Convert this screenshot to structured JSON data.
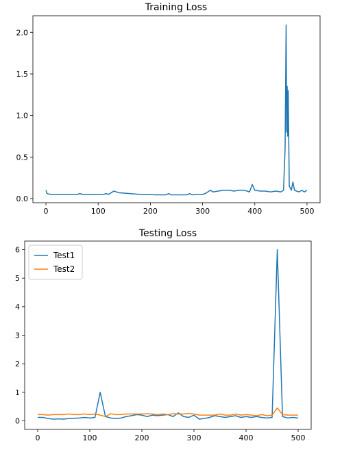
{
  "chart_data": [
    {
      "type": "line",
      "title": "Training Loss",
      "xlabel": "",
      "ylabel": "",
      "xlim": [
        -25,
        525
      ],
      "ylim": [
        -0.05,
        2.2
      ],
      "xticks": [
        0,
        100,
        200,
        300,
        400,
        500
      ],
      "yticks": [
        0.0,
        0.5,
        1.0,
        1.5,
        2.0
      ],
      "xtick_labels": [
        "0",
        "100",
        "200",
        "300",
        "400",
        "500"
      ],
      "ytick_labels": [
        "0.0",
        "0.5",
        "1.0",
        "1.5",
        "2.0"
      ],
      "grid": false,
      "legend": null,
      "series": [
        {
          "color": "#1f77b4",
          "x": [
            0,
            2,
            5,
            10,
            20,
            30,
            40,
            50,
            60,
            65,
            70,
            80,
            90,
            100,
            110,
            115,
            120,
            125,
            130,
            135,
            140,
            150,
            160,
            170,
            180,
            190,
            200,
            210,
            220,
            230,
            235,
            240,
            250,
            260,
            270,
            275,
            280,
            290,
            300,
            305,
            310,
            315,
            320,
            330,
            340,
            350,
            360,
            370,
            380,
            390,
            395,
            400,
            410,
            420,
            430,
            440,
            450,
            455,
            458,
            460,
            461,
            462,
            463,
            464,
            466,
            470,
            473,
            476,
            480,
            485,
            490,
            495,
            500
          ],
          "y": [
            0.1,
            0.06,
            0.055,
            0.05,
            0.05,
            0.05,
            0.048,
            0.05,
            0.05,
            0.06,
            0.05,
            0.05,
            0.048,
            0.05,
            0.05,
            0.06,
            0.05,
            0.07,
            0.09,
            0.08,
            0.07,
            0.065,
            0.06,
            0.055,
            0.05,
            0.05,
            0.048,
            0.045,
            0.045,
            0.045,
            0.06,
            0.045,
            0.045,
            0.045,
            0.045,
            0.06,
            0.045,
            0.05,
            0.05,
            0.06,
            0.08,
            0.1,
            0.08,
            0.09,
            0.1,
            0.1,
            0.09,
            0.1,
            0.1,
            0.08,
            0.17,
            0.1,
            0.09,
            0.09,
            0.08,
            0.09,
            0.08,
            0.1,
            0.6,
            2.09,
            0.8,
            1.35,
            0.75,
            1.3,
            0.15,
            0.1,
            0.2,
            0.1,
            0.09,
            0.08,
            0.1,
            0.08,
            0.1
          ]
        }
      ]
    },
    {
      "type": "line",
      "title": "Testing Loss",
      "xlabel": "",
      "ylabel": "",
      "xlim": [
        -25,
        525
      ],
      "ylim": [
        -0.3,
        6.3
      ],
      "xticks": [
        0,
        100,
        200,
        300,
        400,
        500
      ],
      "yticks": [
        0,
        1,
        2,
        3,
        4,
        5,
        6
      ],
      "xtick_labels": [
        "0",
        "100",
        "200",
        "300",
        "400",
        "500"
      ],
      "ytick_labels": [
        "0",
        "1",
        "2",
        "3",
        "4",
        "5",
        "6"
      ],
      "grid": false,
      "legend": "top-left",
      "series": [
        {
          "name": "Test1",
          "color": "#1f77b4",
          "x": [
            0,
            10,
            20,
            30,
            40,
            50,
            60,
            70,
            80,
            90,
            100,
            110,
            120,
            130,
            140,
            150,
            160,
            170,
            180,
            190,
            200,
            210,
            220,
            230,
            240,
            250,
            260,
            270,
            280,
            290,
            300,
            310,
            320,
            330,
            340,
            350,
            360,
            370,
            380,
            390,
            400,
            410,
            420,
            430,
            440,
            450,
            460,
            470,
            480,
            490,
            500
          ],
          "y": [
            0.12,
            0.12,
            0.08,
            0.06,
            0.07,
            0.06,
            0.08,
            0.09,
            0.1,
            0.12,
            0.1,
            0.12,
            1.0,
            0.15,
            0.1,
            0.08,
            0.1,
            0.15,
            0.18,
            0.22,
            0.2,
            0.15,
            0.2,
            0.18,
            0.2,
            0.22,
            0.15,
            0.28,
            0.15,
            0.12,
            0.2,
            0.06,
            0.08,
            0.12,
            0.18,
            0.15,
            0.12,
            0.15,
            0.18,
            0.12,
            0.15,
            0.12,
            0.15,
            0.12,
            0.1,
            0.12,
            6.0,
            0.15,
            0.1,
            0.12,
            0.1
          ]
        },
        {
          "name": "Test2",
          "color": "#ff7f0e",
          "x": [
            0,
            10,
            20,
            30,
            40,
            50,
            60,
            70,
            80,
            90,
            100,
            110,
            120,
            130,
            140,
            150,
            160,
            170,
            180,
            190,
            200,
            210,
            220,
            230,
            240,
            250,
            260,
            270,
            280,
            290,
            300,
            310,
            320,
            330,
            340,
            350,
            360,
            370,
            380,
            390,
            400,
            410,
            420,
            430,
            440,
            450,
            460,
            470,
            480,
            490,
            500
          ],
          "y": [
            0.22,
            0.22,
            0.2,
            0.22,
            0.22,
            0.22,
            0.24,
            0.22,
            0.22,
            0.24,
            0.22,
            0.24,
            0.2,
            0.15,
            0.25,
            0.22,
            0.22,
            0.24,
            0.24,
            0.24,
            0.24,
            0.25,
            0.24,
            0.22,
            0.24,
            0.22,
            0.25,
            0.24,
            0.24,
            0.26,
            0.24,
            0.2,
            0.2,
            0.2,
            0.2,
            0.24,
            0.2,
            0.2,
            0.24,
            0.2,
            0.22,
            0.2,
            0.18,
            0.22,
            0.18,
            0.2,
            0.45,
            0.22,
            0.2,
            0.2,
            0.2
          ]
        }
      ]
    }
  ]
}
